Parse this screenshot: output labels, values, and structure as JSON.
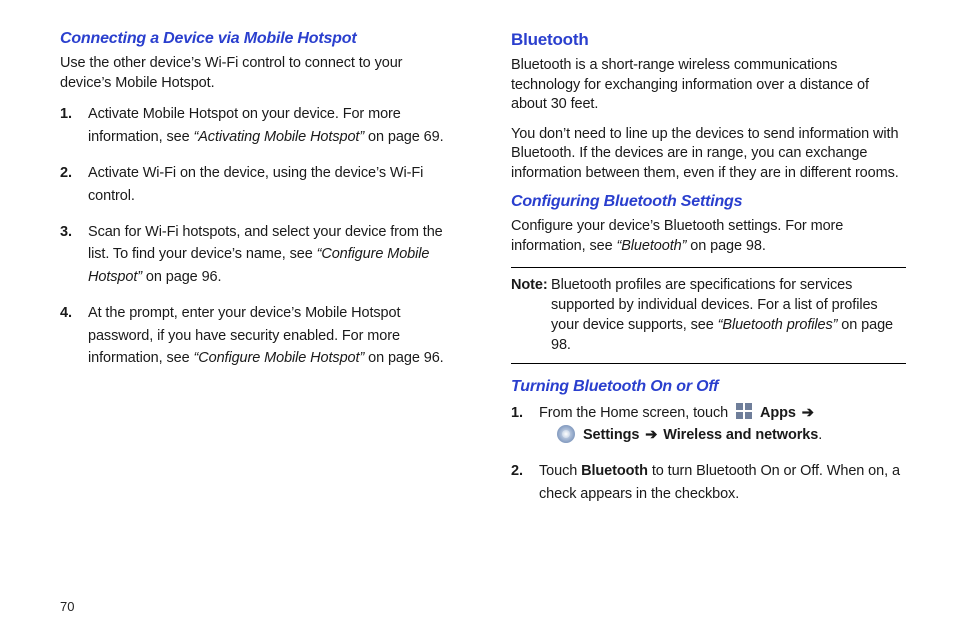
{
  "colors": {
    "heading_blue": "#2a3fce",
    "body_text": "#1a1a1a",
    "background": "#ffffff",
    "rule": "#000000",
    "apps_icon": "#6f7e9a"
  },
  "left": {
    "heading": "Connecting a Device via Mobile Hotspot",
    "intro": "Use the other device’s Wi-Fi control to connect to your device’s Mobile Hotspot.",
    "steps": [
      {
        "n": "1.",
        "pre": "Activate Mobile Hotspot on your device. For more information, see ",
        "ref": "“Activating Mobile Hotspot”",
        "post": " on page 69."
      },
      {
        "n": "2.",
        "pre": "Activate Wi-Fi on the device, using the device’s Wi-Fi control.",
        "ref": "",
        "post": ""
      },
      {
        "n": "3.",
        "pre": "Scan for Wi-Fi hotspots, and select your device from the list. To find your device’s name, see ",
        "ref": "“Configure Mobile Hotspot”",
        "post": " on page 96."
      },
      {
        "n": "4.",
        "pre": "At the prompt, enter your device’s Mobile Hotspot password, if you have security enabled. For more information, see ",
        "ref": "“Configure Mobile Hotspot”",
        "post": " on page 96."
      }
    ]
  },
  "right": {
    "heading": "Bluetooth",
    "intro1": "Bluetooth is a short-range wireless communications technology for exchanging information over a distance of about 30 feet.",
    "intro2": "You don’t need to line up the devices to send information with Bluetooth. If the devices are in range, you can exchange information between them, even if they are in different rooms.",
    "sub1": "Configuring Bluetooth Settings",
    "sub1_text_pre": "Configure your device’s Bluetooth settings. For more information, see ",
    "sub1_ref": "“Bluetooth”",
    "sub1_text_post": " on page 98.",
    "note_label": "Note:",
    "note_pre": " Bluetooth profiles are specifications for services supported by individual devices. For a list of profiles your device supports, see ",
    "note_ref": "“Bluetooth profiles”",
    "note_post": " on page 98.",
    "sub2": "Turning Bluetooth On or Off",
    "step1_pre": "From the Home screen, touch ",
    "apps_label": "Apps",
    "arrow": "➔",
    "settings_label": "Settings",
    "wireless_label": "Wireless and networks",
    "period": ".",
    "step2_pre": "Touch ",
    "step2_b": "Bluetooth",
    "step2_post": " to turn Bluetooth On or Off. When on, a check appears in the checkbox."
  },
  "page_number": "70"
}
